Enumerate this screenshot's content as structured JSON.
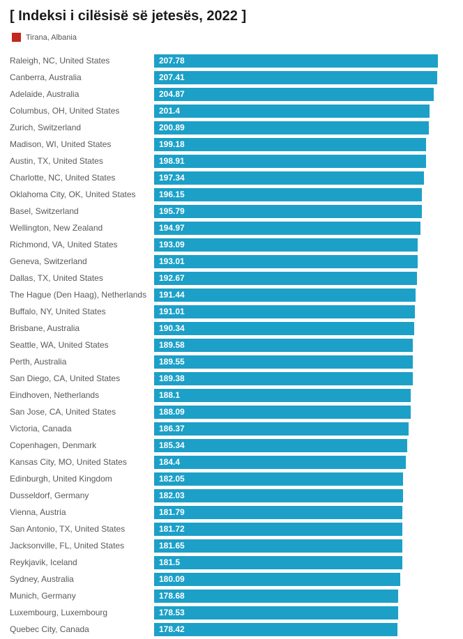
{
  "page": {
    "title": "[ Indeksi i cilësisë së jetesës, 2022 ]"
  },
  "legend": {
    "label": "Tirana, Albania",
    "swatch_color": "#c3271e"
  },
  "chart_data": {
    "type": "bar",
    "orientation": "horizontal",
    "title": "[ Indeksi i cilësisë së jetesës, 2022 ]",
    "legend_position": "top-left",
    "legend_entries": [
      {
        "label": "Tirana, Albania",
        "color": "#c3271e"
      }
    ],
    "bar_color": "#1ca0c8",
    "value_label_color": "#ffffff",
    "grid": false,
    "xlim": [
      0,
      207.78
    ],
    "categories": [
      "Raleigh, NC, United States",
      "Canberra, Australia",
      "Adelaide, Australia",
      "Columbus, OH, United States",
      "Zurich, Switzerland",
      "Madison, WI, United States",
      "Austin, TX, United States",
      "Charlotte, NC, United States",
      "Oklahoma City, OK, United States",
      "Basel, Switzerland",
      "Wellington, New Zealand",
      "Richmond, VA, United States",
      "Geneva, Switzerland",
      "Dallas, TX, United States",
      "The Hague (Den Haag), Netherlands",
      "Buffalo, NY, United States",
      "Brisbane, Australia",
      "Seattle, WA, United States",
      "Perth, Australia",
      "San Diego, CA, United States",
      "Eindhoven, Netherlands",
      "San Jose, CA, United States",
      "Victoria, Canada",
      "Copenhagen, Denmark",
      "Kansas City, MO, United States",
      "Edinburgh, United Kingdom",
      "Dusseldorf, Germany",
      "Vienna, Austria",
      "San Antonio, TX, United States",
      "Jacksonville, FL, United States",
      "Reykjavik, Iceland",
      "Sydney, Australia",
      "Munich, Germany",
      "Luxembourg, Luxembourg",
      "Quebec City, Canada"
    ],
    "values": [
      207.78,
      207.41,
      204.87,
      201.4,
      200.89,
      199.18,
      198.91,
      197.34,
      196.15,
      195.79,
      194.97,
      193.09,
      193.01,
      192.67,
      191.44,
      191.01,
      190.34,
      189.58,
      189.55,
      189.38,
      188.1,
      188.09,
      186.37,
      185.34,
      184.4,
      182.05,
      182.03,
      181.79,
      181.72,
      181.65,
      181.5,
      180.09,
      178.68,
      178.53,
      178.42
    ]
  }
}
